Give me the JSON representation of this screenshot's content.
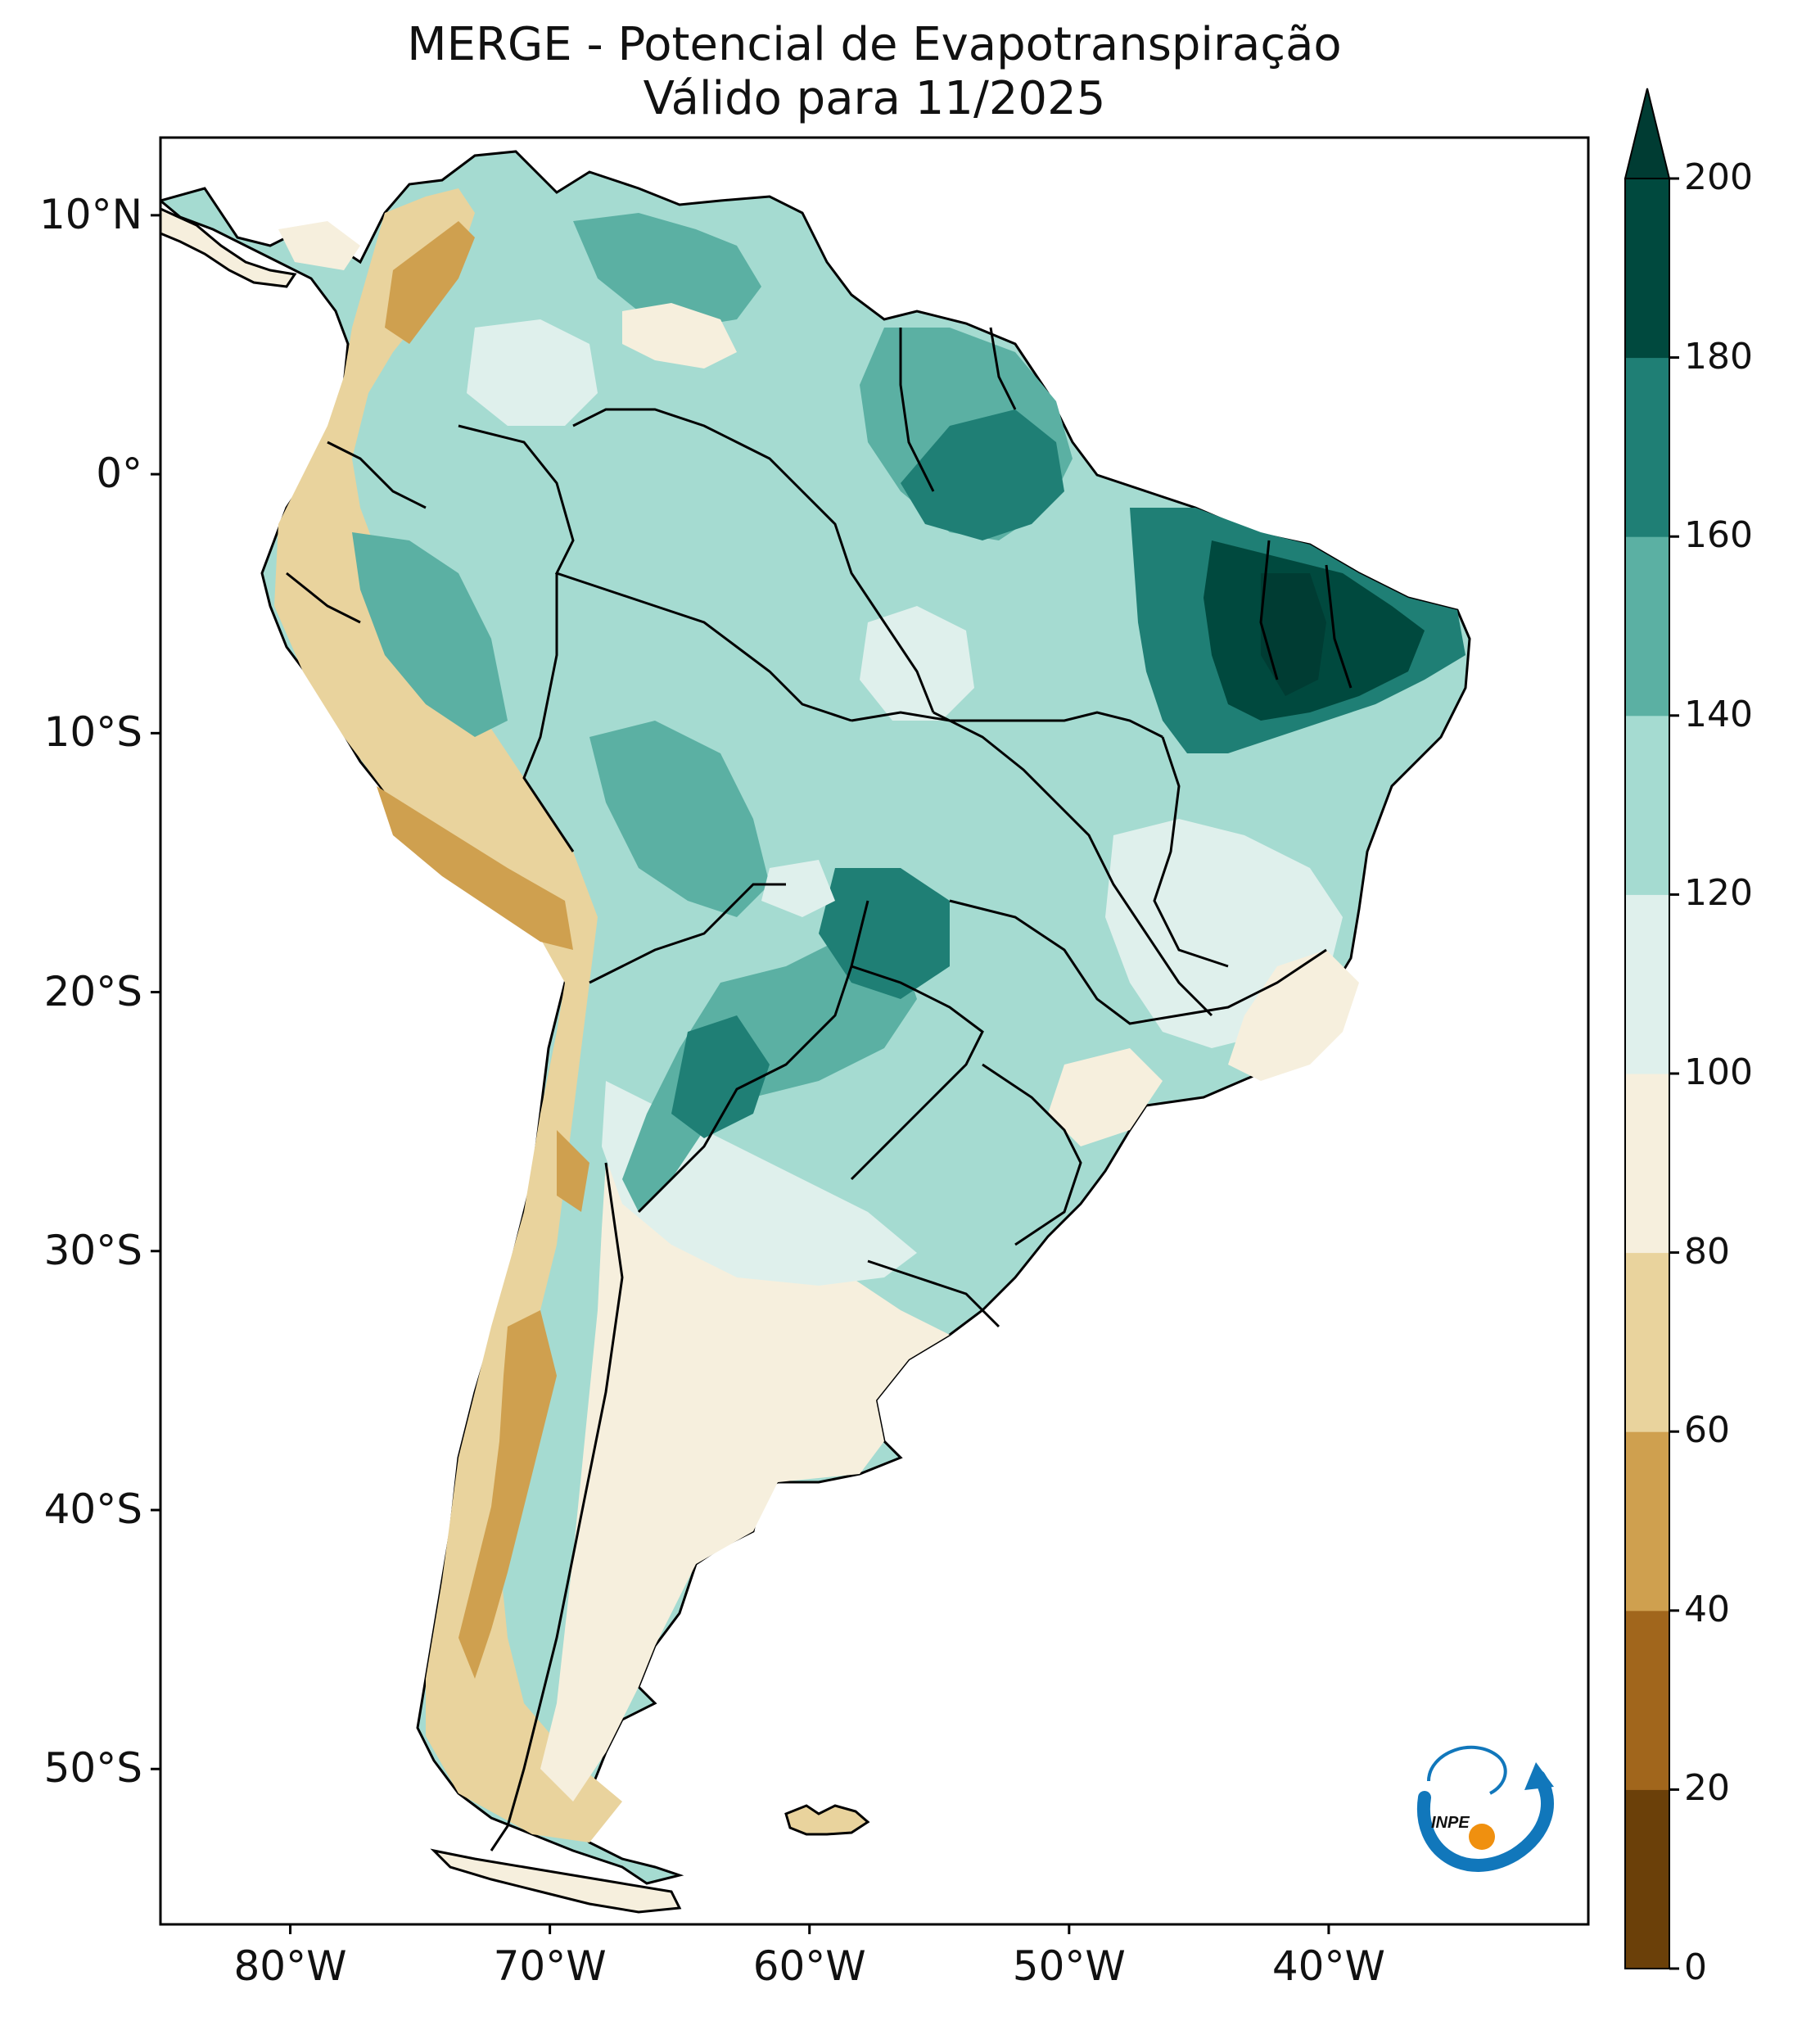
{
  "title": {
    "line1": "MERGE - Potencial de Evapotranspiração",
    "line2": "Válido para 11/2025"
  },
  "map": {
    "region": "South America",
    "variable": "Potencial de Evapotranspiração",
    "lon_range": [
      -85,
      -30
    ],
    "lat_range": [
      -56,
      13
    ],
    "lat_ticks": [
      {
        "value": 10,
        "label": "10°N"
      },
      {
        "value": 0,
        "label": "0°"
      },
      {
        "value": -10,
        "label": "10°S"
      },
      {
        "value": -20,
        "label": "20°S"
      },
      {
        "value": -30,
        "label": "30°S"
      },
      {
        "value": -40,
        "label": "40°S"
      },
      {
        "value": -50,
        "label": "50°S"
      }
    ],
    "lon_ticks": [
      {
        "value": -80,
        "label": "80°W"
      },
      {
        "value": -70,
        "label": "70°W"
      },
      {
        "value": -60,
        "label": "60°W"
      },
      {
        "value": -50,
        "label": "50°W"
      },
      {
        "value": -40,
        "label": "40°W"
      }
    ]
  },
  "colorbar": {
    "levels": [
      0,
      20,
      40,
      60,
      80,
      100,
      120,
      140,
      160,
      180,
      200
    ],
    "labels": [
      "0",
      "20",
      "40",
      "60",
      "80",
      "100",
      "120",
      "140",
      "160",
      "180",
      "200"
    ],
    "colors": [
      "#6b4009",
      "#a1661c",
      "#cfa04f",
      "#e9d39d",
      "#f6efdd",
      "#dff0ec",
      "#a5dbd1",
      "#5bb0a3",
      "#1f7f75",
      "#00493e",
      "#003c33"
    ],
    "extend": "max"
  },
  "logo": {
    "text": "INPE",
    "colors": {
      "blue": "#1177bb",
      "orange": "#f0900f"
    }
  }
}
